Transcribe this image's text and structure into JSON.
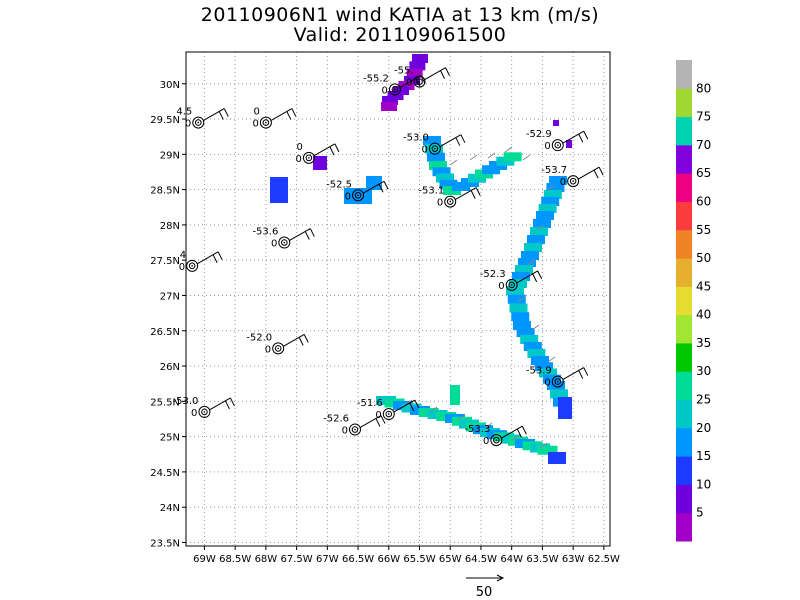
{
  "title": {
    "line1": "20110906N1 wind KATIA at 13 km (m/s)",
    "line2": "Valid: 201109061500"
  },
  "axes": {
    "lon_ticks": [
      "69W",
      "68.5W",
      "68W",
      "67.5W",
      "67W",
      "66.5W",
      "66W",
      "65.5W",
      "65W",
      "64.5W",
      "64W",
      "63.5W",
      "63W",
      "62.5W"
    ],
    "lat_ticks": [
      "23.5N",
      "24N",
      "24.5N",
      "25N",
      "25.5N",
      "26N",
      "26.5N",
      "27N",
      "27.5N",
      "28N",
      "28.5N",
      "29N",
      "29.5N",
      "30N"
    ]
  },
  "colorbar": {
    "labels": [
      "5",
      "10",
      "15",
      "20",
      "25",
      "30",
      "35",
      "40",
      "45",
      "50",
      "55",
      "60",
      "65",
      "70",
      "75",
      "80"
    ],
    "colors": [
      "#a000c8",
      "#6e00dc",
      "#1e3cff",
      "#0096ff",
      "#00c8c8",
      "#00dc96",
      "#00c800",
      "#a0e632",
      "#e6dc32",
      "#e6af2d",
      "#f08228",
      "#fa3c3c",
      "#f00082",
      "#8200dc",
      "#00d2b4",
      "#a0d732",
      "#b4b4b4"
    ]
  },
  "scale_label": "50",
  "stations": [
    {
      "label": "-55.",
      "lon": -65.5,
      "lat": 30.03
    },
    {
      "label": "-55.2",
      "lon": -65.9,
      "lat": 29.92
    },
    {
      "label": "4.5",
      "lon": -69.1,
      "lat": 29.45
    },
    {
      "label": "0",
      "lon": -68.0,
      "lat": 29.45
    },
    {
      "label": "-52.9",
      "lon": -63.25,
      "lat": 29.13
    },
    {
      "label": "-53.0",
      "lon": -65.25,
      "lat": 29.08
    },
    {
      "label": "0",
      "lon": -67.3,
      "lat": 28.95
    },
    {
      "label": "-53.7",
      "lon": -63.0,
      "lat": 28.62
    },
    {
      "label": "-52.5",
      "lon": -66.5,
      "lat": 28.42
    },
    {
      "label": "-53.1",
      "lon": -65.0,
      "lat": 28.33
    },
    {
      "label": "-53.6",
      "lon": -67.7,
      "lat": 27.75
    },
    {
      "label": "4",
      "lon": -69.2,
      "lat": 27.42
    },
    {
      "label": "-52.3",
      "lon": -64.0,
      "lat": 27.15
    },
    {
      "label": "-52.0",
      "lon": -67.8,
      "lat": 26.25
    },
    {
      "label": "-53.9",
      "lon": -63.25,
      "lat": 25.78
    },
    {
      "label": "-53.0",
      "lon": -69.0,
      "lat": 25.35
    },
    {
      "label": "-51.6",
      "lon": -66.0,
      "lat": 25.32
    },
    {
      "label": "-52.6",
      "lon": -66.55,
      "lat": 25.1
    },
    {
      "label": "-53.3",
      "lon": -64.25,
      "lat": 24.95
    }
  ]
}
